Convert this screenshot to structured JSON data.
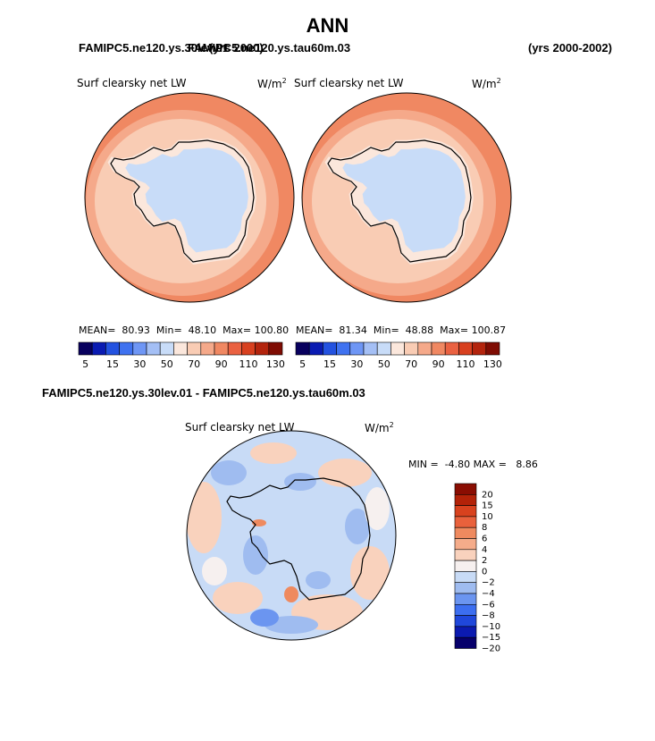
{
  "header": {
    "season": "ANN",
    "case_overlap_a": "FAMIPC5.ne120.ys.30lev.01",
    "case_overlap_b": "FAMIPC5.ne120.ys.tau60m.03",
    "yrs_left": "(yrs 2000)",
    "yrs_right": "(yrs 2000-2002)"
  },
  "colors": {
    "abs_palette": [
      "#08005e",
      "#0a1bb2",
      "#2352e0",
      "#3f72f0",
      "#6e96f5",
      "#a4bff5",
      "#c8dcf8",
      "#fbe7dc",
      "#f9ccb4",
      "#f5a98a",
      "#f08862",
      "#ea6141",
      "#d8401f",
      "#b3240d",
      "#7f0c03"
    ],
    "diff_palette": [
      "#07006b",
      "#0b1ab0",
      "#1f47db",
      "#3c6ef0",
      "#6b95f0",
      "#9fbcf0",
      "#c8dbf6",
      "#f6f0ef",
      "#f9d2bd",
      "#f5ac8a",
      "#ef8a5f",
      "#e9613c",
      "#d8421e",
      "#b32208",
      "#8a0d02"
    ]
  },
  "panels": [
    {
      "title": "Surf clearsky net LW",
      "units": "W/m",
      "units_exp": "2",
      "mean_label": "MEAN=",
      "mean": "80.93",
      "min_label": "Min=",
      "min": "48.10",
      "max_label": "Max=",
      "max": "100.80"
    },
    {
      "title": "Surf clearsky net LW",
      "units": "W/m",
      "units_exp": "2",
      "mean_label": "MEAN=",
      "mean": "81.34",
      "min_label": "Min=",
      "min": "48.88",
      "max_label": "Max=",
      "max": "100.87"
    }
  ],
  "abs_colorbar_ticks": [
    "5",
    "15",
    "30",
    "50",
    "70",
    "90",
    "110",
    "130"
  ],
  "diff": {
    "heading": "FAMIPC5.ne120.ys.30lev.01 - FAMIPC5.ne120.ys.tau60m.03",
    "title": "Surf clearsky net LW",
    "units": "W/m",
    "units_exp": "2",
    "min_label": "MIN =",
    "min": "-4.80",
    "max_label": "MAX =",
    "max": "8.86",
    "colorbar_ticks": [
      "20",
      "15",
      "10",
      "8",
      "6",
      "4",
      "2",
      "0",
      "−2",
      "−4",
      "−6",
      "−8",
      "−10",
      "−15",
      "−20"
    ]
  },
  "chart_data": [
    {
      "type": "heatmap",
      "projection": "south-polar-stereographic",
      "title": "Surf clearsky net LW",
      "case": "FAMIPC5.ne120.ys.30lev.01",
      "years": "(yrs 2000)",
      "units": "W/m2",
      "mean": 80.93,
      "min": 48.1,
      "max": 100.8,
      "contour_levels": [
        5,
        15,
        30,
        50,
        70,
        90,
        110,
        130
      ]
    },
    {
      "type": "heatmap",
      "projection": "south-polar-stereographic",
      "title": "Surf clearsky net LW",
      "case": "FAMIPC5.ne120.ys.tau60m.03",
      "years": "(yrs 2000-2002)",
      "units": "W/m2",
      "mean": 81.34,
      "min": 48.88,
      "max": 100.87,
      "contour_levels": [
        5,
        15,
        30,
        50,
        70,
        90,
        110,
        130
      ]
    },
    {
      "type": "heatmap",
      "projection": "south-polar-stereographic",
      "title": "Surf clearsky net LW",
      "difference": "FAMIPC5.ne120.ys.30lev.01 - FAMIPC5.ne120.ys.tau60m.03",
      "units": "W/m2",
      "min": -4.8,
      "max": 8.86,
      "contour_levels": [
        -20,
        -15,
        -10,
        -8,
        -6,
        -4,
        -2,
        0,
        2,
        4,
        6,
        8,
        10,
        15,
        20
      ]
    }
  ]
}
